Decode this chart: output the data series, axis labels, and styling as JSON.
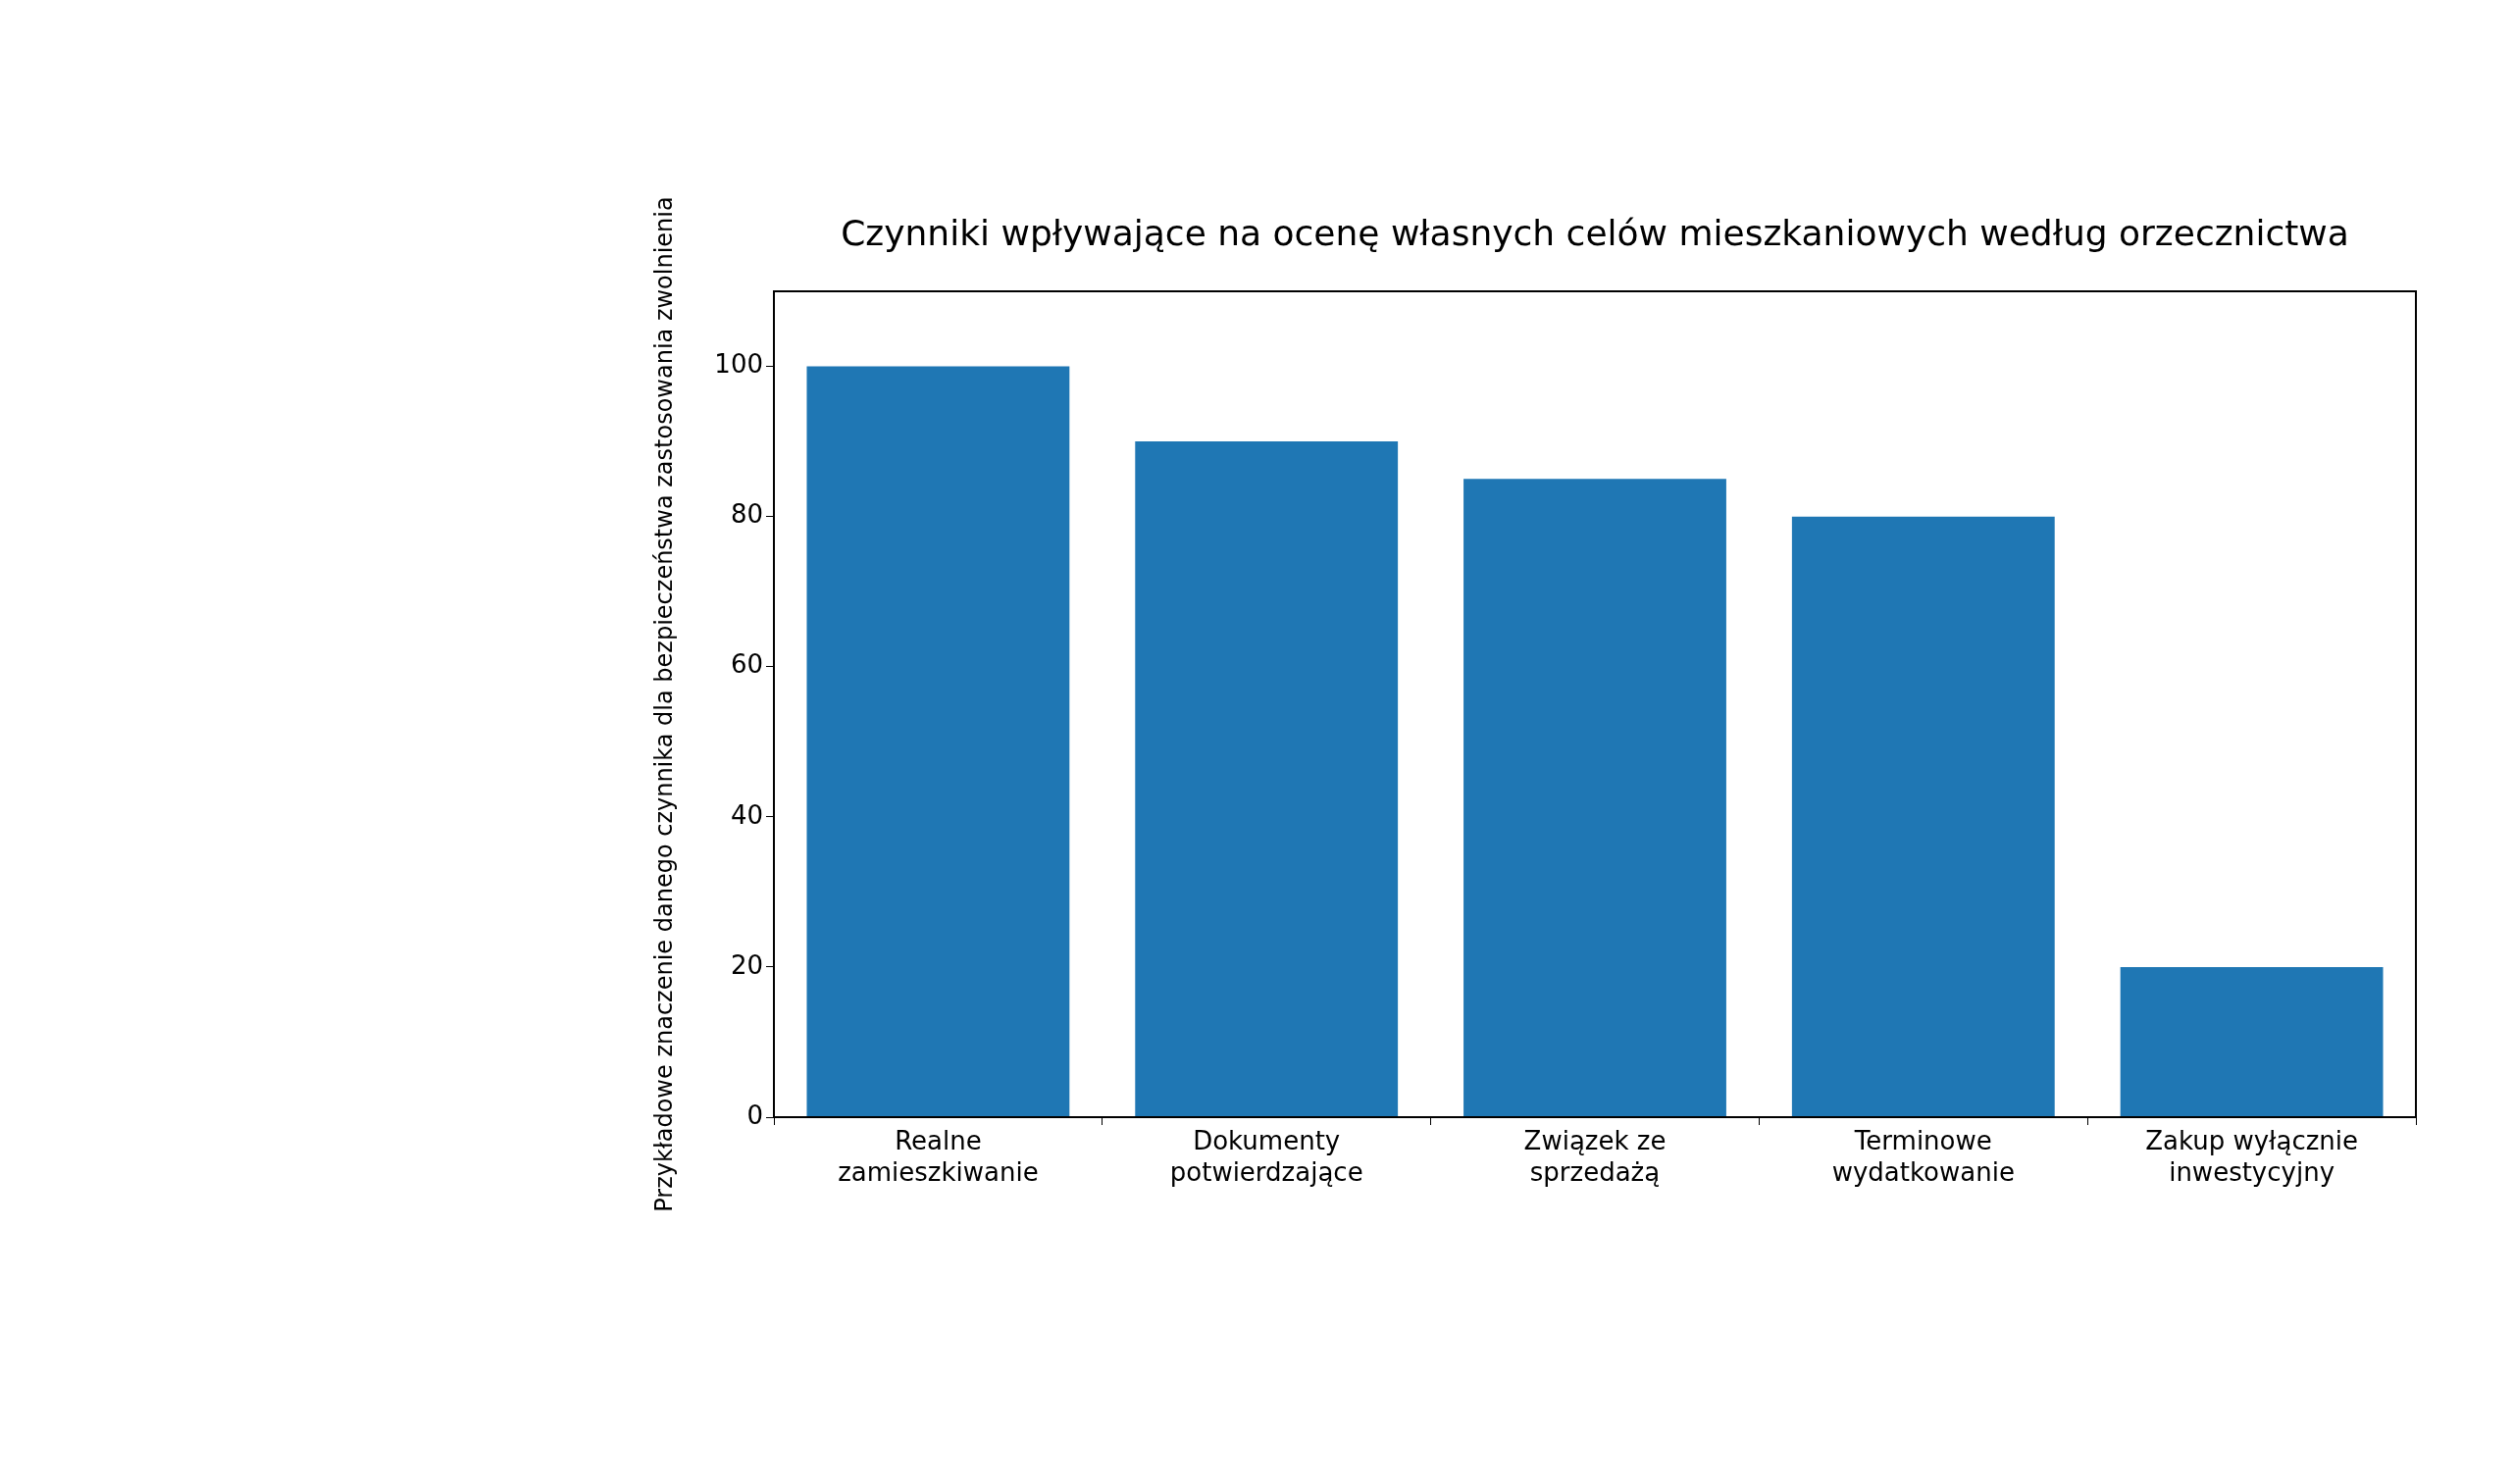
{
  "chart_data": {
    "type": "bar",
    "title": "Czynniki wpływające na ocenę własnych celów mieszkaniowych według orzecznictwa",
    "ylabel": "Przykładowe znaczenie danego czynnika dla bezpieczeństwa zastosowania zwolnienia",
    "categories": [
      "Realne zamieszkiwanie",
      "Dokumenty potwierdzające",
      "Związek ze sprzedażą",
      "Terminowe wydatkowanie",
      "Zakup wyłącznie inwestycyjny"
    ],
    "values": [
      100,
      90,
      85,
      80,
      20
    ],
    "color": "#1f77b4",
    "ylim": [
      0,
      110
    ],
    "yticks": [
      0,
      20,
      40,
      60,
      80,
      100
    ],
    "grid": false,
    "legend": false
  }
}
